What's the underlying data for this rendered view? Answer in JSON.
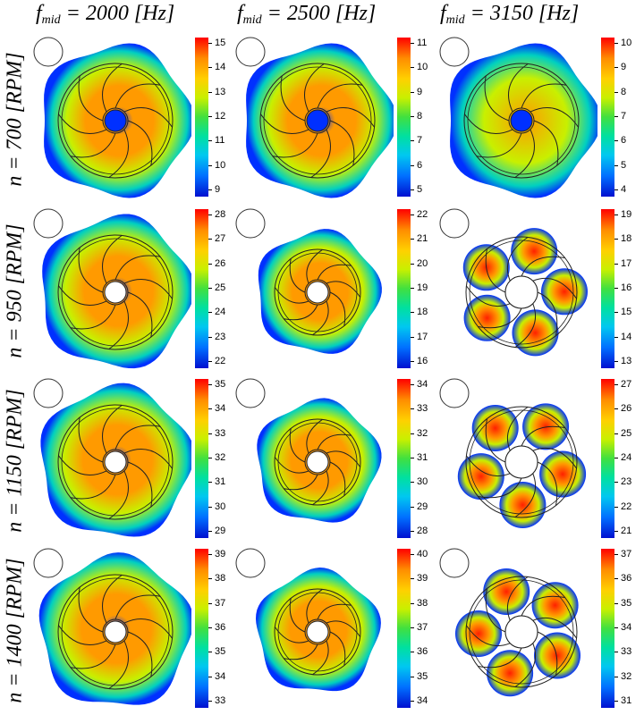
{
  "columns": [
    {
      "label_main": "f",
      "label_sub": "mid",
      "label_rest": " = 2000 [Hz]"
    },
    {
      "label_main": "f",
      "label_sub": "mid",
      "label_rest": " = 2500 [Hz]"
    },
    {
      "label_main": "f",
      "label_sub": "mid",
      "label_rest": " = 3150 [Hz]"
    }
  ],
  "rows": [
    {
      "label": "n = 700 [RPM]"
    },
    {
      "label": "n = 950 [RPM]"
    },
    {
      "label": "n = 1150 [RPM]"
    },
    {
      "label": "n = 1400 [RPM]"
    }
  ],
  "colorbars": [
    [
      [
        "15",
        "14",
        "13",
        "12",
        "11",
        "10",
        "9"
      ],
      [
        "11",
        "10",
        "9",
        "8",
        "7",
        "6",
        "5"
      ],
      [
        "10",
        "9",
        "8",
        "7",
        "6",
        "5",
        "4"
      ]
    ],
    [
      [
        "28",
        "27",
        "26",
        "25",
        "24",
        "23",
        "22"
      ],
      [
        "22",
        "21",
        "20",
        "19",
        "18",
        "17",
        "16"
      ],
      [
        "19",
        "18",
        "17",
        "16",
        "15",
        "14",
        "13"
      ]
    ],
    [
      [
        "35",
        "34",
        "33",
        "32",
        "31",
        "30",
        "29"
      ],
      [
        "34",
        "33",
        "32",
        "31",
        "30",
        "29",
        "28"
      ],
      [
        "27",
        "26",
        "25",
        "24",
        "23",
        "22",
        "21"
      ]
    ],
    [
      [
        "39",
        "38",
        "37",
        "36",
        "35",
        "34",
        "33"
      ],
      [
        "40",
        "39",
        "38",
        "37",
        "36",
        "35",
        "34"
      ],
      [
        "37",
        "36",
        "35",
        "34",
        "33",
        "32",
        "31"
      ]
    ]
  ],
  "colors": {
    "hot": "#ff2000",
    "warm": "#ff9a00",
    "mid": "#c8f000",
    "cool": "#00d0c0",
    "cold": "#0030ff"
  }
}
